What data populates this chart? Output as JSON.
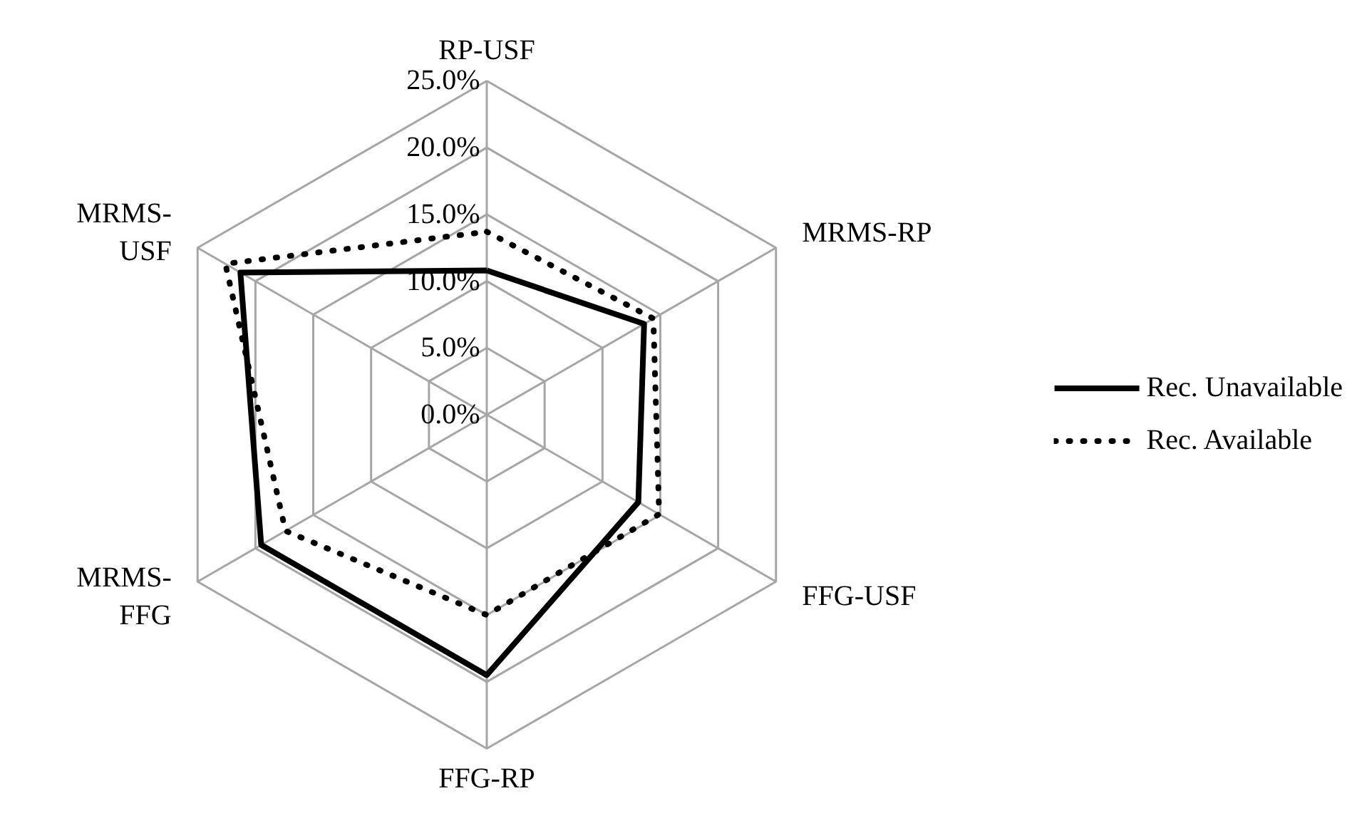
{
  "chart_data": {
    "type": "radar",
    "categories": [
      "RP-USF",
      "MRMS-RP",
      "FFG-USF",
      "FFG-RP",
      "MRMS-FFG",
      "MRMS-USF"
    ],
    "series": [
      {
        "name": "Rec. Unavailable",
        "color": "#000000",
        "line_style": "solid",
        "values": [
          10.8,
          13.6,
          13.1,
          19.5,
          19.5,
          21.3
        ]
      },
      {
        "name": "Rec. Available",
        "color": "#000000",
        "line_style": "dotted",
        "values": [
          13.7,
          14.4,
          14.9,
          15.0,
          17.4,
          22.6
        ]
      }
    ],
    "ylim": [
      0,
      25
    ],
    "yticks": [
      {
        "value": 0,
        "label": "0.0%"
      },
      {
        "value": 5,
        "label": "5.0%"
      },
      {
        "value": 10,
        "label": "10.0%"
      },
      {
        "value": 15,
        "label": "15.0%"
      },
      {
        "value": 20,
        "label": "20.0%"
      },
      {
        "value": 25,
        "label": "25.0%"
      }
    ],
    "grid": true,
    "legend": "right"
  }
}
